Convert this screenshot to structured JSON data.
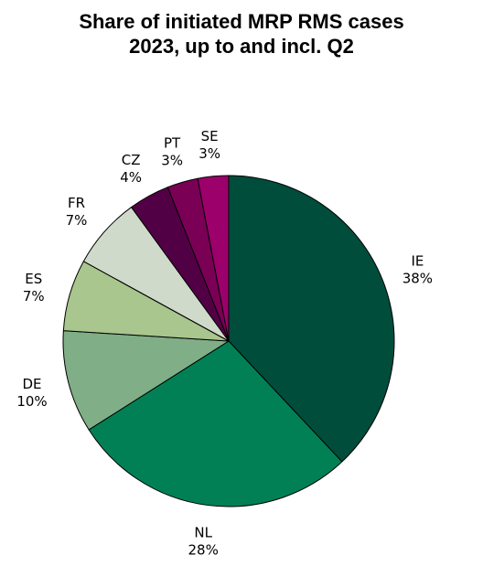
{
  "chart_data": {
    "type": "pie",
    "title": [
      "Share of initiated MRP RMS cases",
      "2023, up to and incl. Q2"
    ],
    "start_angle": "12 o'clock",
    "direction": "clockwise",
    "slices": [
      {
        "label": "IE",
        "value": 38,
        "value_label": "38%",
        "color": "#004d3c"
      },
      {
        "label": "NL",
        "value": 28,
        "value_label": "28%",
        "color": "#028055"
      },
      {
        "label": "DE",
        "value": 10,
        "value_label": "10%",
        "color": "#80ae86"
      },
      {
        "label": "ES",
        "value": 7,
        "value_label": "7%",
        "color": "#a8c68d"
      },
      {
        "label": "FR",
        "value": 7,
        "value_label": "7%",
        "color": "#cfdacb"
      },
      {
        "label": "CZ",
        "value": 4,
        "value_label": "4%",
        "color": "#520046"
      },
      {
        "label": "PT",
        "value": 3,
        "value_label": "3%",
        "color": "#7a0055"
      },
      {
        "label": "SE",
        "value": 3,
        "value_label": "3%",
        "color": "#9c006b"
      }
    ]
  }
}
